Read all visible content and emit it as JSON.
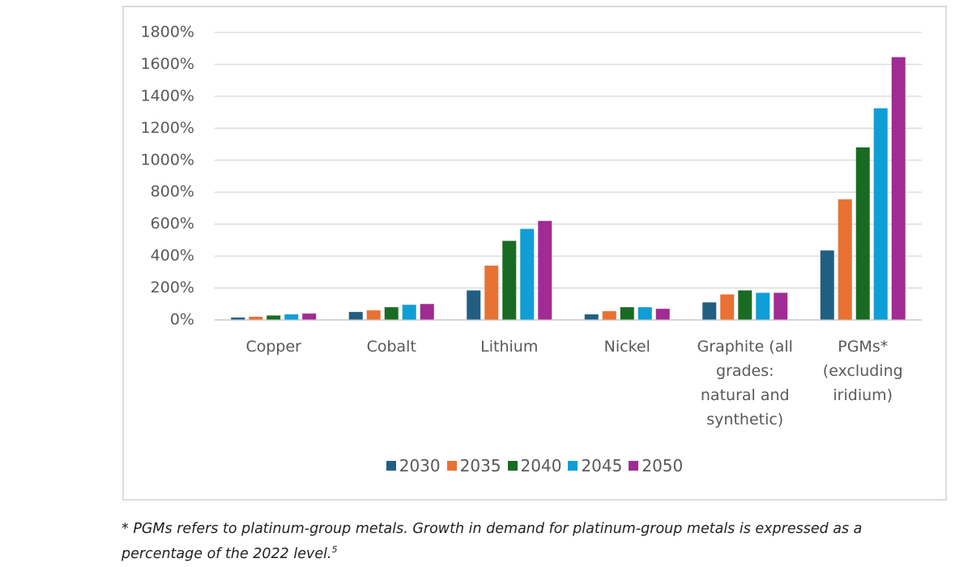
{
  "chart_data": {
    "type": "bar",
    "categories": [
      "Copper",
      "Cobalt",
      "Lithium",
      "Nickel",
      "Graphite (all grades: natural and synthetic)",
      "PGMs* (excluding iridium)"
    ],
    "series": [
      {
        "name": "2030",
        "color": "#215f82",
        "values": [
          15,
          50,
          185,
          35,
          110,
          435
        ]
      },
      {
        "name": "2035",
        "color": "#e97132",
        "values": [
          20,
          60,
          340,
          55,
          160,
          755
        ]
      },
      {
        "name": "2040",
        "color": "#196b24",
        "values": [
          28,
          80,
          495,
          80,
          185,
          1080
        ]
      },
      {
        "name": "2045",
        "color": "#0f9ed5",
        "values": [
          35,
          95,
          570,
          80,
          170,
          1325
        ]
      },
      {
        "name": "2050",
        "color": "#a02b93",
        "values": [
          40,
          100,
          620,
          70,
          170,
          1645
        ]
      }
    ],
    "ylim": [
      0,
      1800
    ],
    "yticks": [
      {
        "value": 0,
        "label": "0%"
      },
      {
        "value": 200,
        "label": "200%"
      },
      {
        "value": 400,
        "label": "400%"
      },
      {
        "value": 600,
        "label": "600%"
      },
      {
        "value": 800,
        "label": "800%"
      },
      {
        "value": 1000,
        "label": "1000%"
      },
      {
        "value": 1200,
        "label": "1200%"
      },
      {
        "value": 1400,
        "label": "1400%"
      },
      {
        "value": 1600,
        "label": "1600%"
      },
      {
        "value": 1800,
        "label": "1800%"
      }
    ],
    "grid": true,
    "legend": "bottom"
  },
  "footnote": {
    "text": "* PGMs refers to platinum-group metals. Growth in demand for platinum-group metals is expressed as a percentage of the 2022 level.",
    "ref": "5"
  }
}
